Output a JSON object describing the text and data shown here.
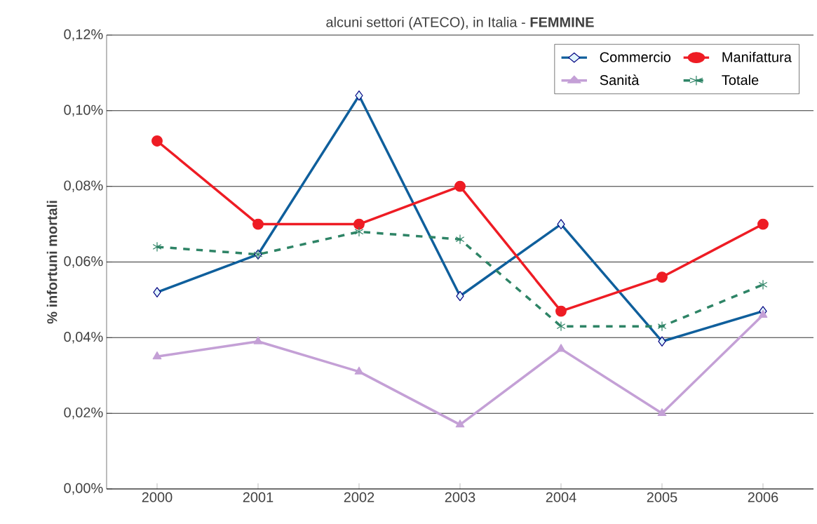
{
  "chart_data": {
    "type": "line",
    "title": "alcuni settori (ATECO), in Italia - **FEMMINE**",
    "ylabel": "% infortuni mortali",
    "categories": [
      "2000",
      "2001",
      "2002",
      "2003",
      "2004",
      "2005",
      "2006"
    ],
    "ylim": [
      0,
      0.12
    ],
    "yticks": [
      {
        "value": 0,
        "label": "0,00%"
      },
      {
        "value": 0.02,
        "label": "0,02%"
      },
      {
        "value": 0.04,
        "label": "0,04%"
      },
      {
        "value": 0.06,
        "label": "0,06%"
      },
      {
        "value": 0.08,
        "label": "0,08%"
      },
      {
        "value": 0.1,
        "label": "0,10%"
      },
      {
        "value": 0.12,
        "label": "0,12%"
      }
    ],
    "grid": "y",
    "legend": "top right",
    "series": [
      {
        "name": "Commercio",
        "color": "#0f5f9c",
        "marker": "diamond",
        "line_style": "solid",
        "values": [
          0.052,
          0.062,
          0.104,
          0.051,
          0.07,
          0.039,
          0.047
        ]
      },
      {
        "name": "Manifattura",
        "color": "#ee1c24",
        "marker": "circle",
        "line_style": "solid",
        "values": [
          0.092,
          0.07,
          0.07,
          0.08,
          0.047,
          0.056,
          0.07
        ]
      },
      {
        "name": "Sanità",
        "color": "#c4a0d6",
        "marker": "triangle",
        "line_style": "solid",
        "values": [
          0.035,
          0.039,
          0.031,
          0.017,
          0.037,
          0.02,
          0.046
        ]
      },
      {
        "name": "Totale",
        "color": "#2e8466",
        "marker": "cross",
        "line_style": "dashed",
        "values": [
          0.064,
          0.062,
          0.068,
          0.066,
          0.043,
          0.043,
          0.054
        ]
      }
    ]
  }
}
